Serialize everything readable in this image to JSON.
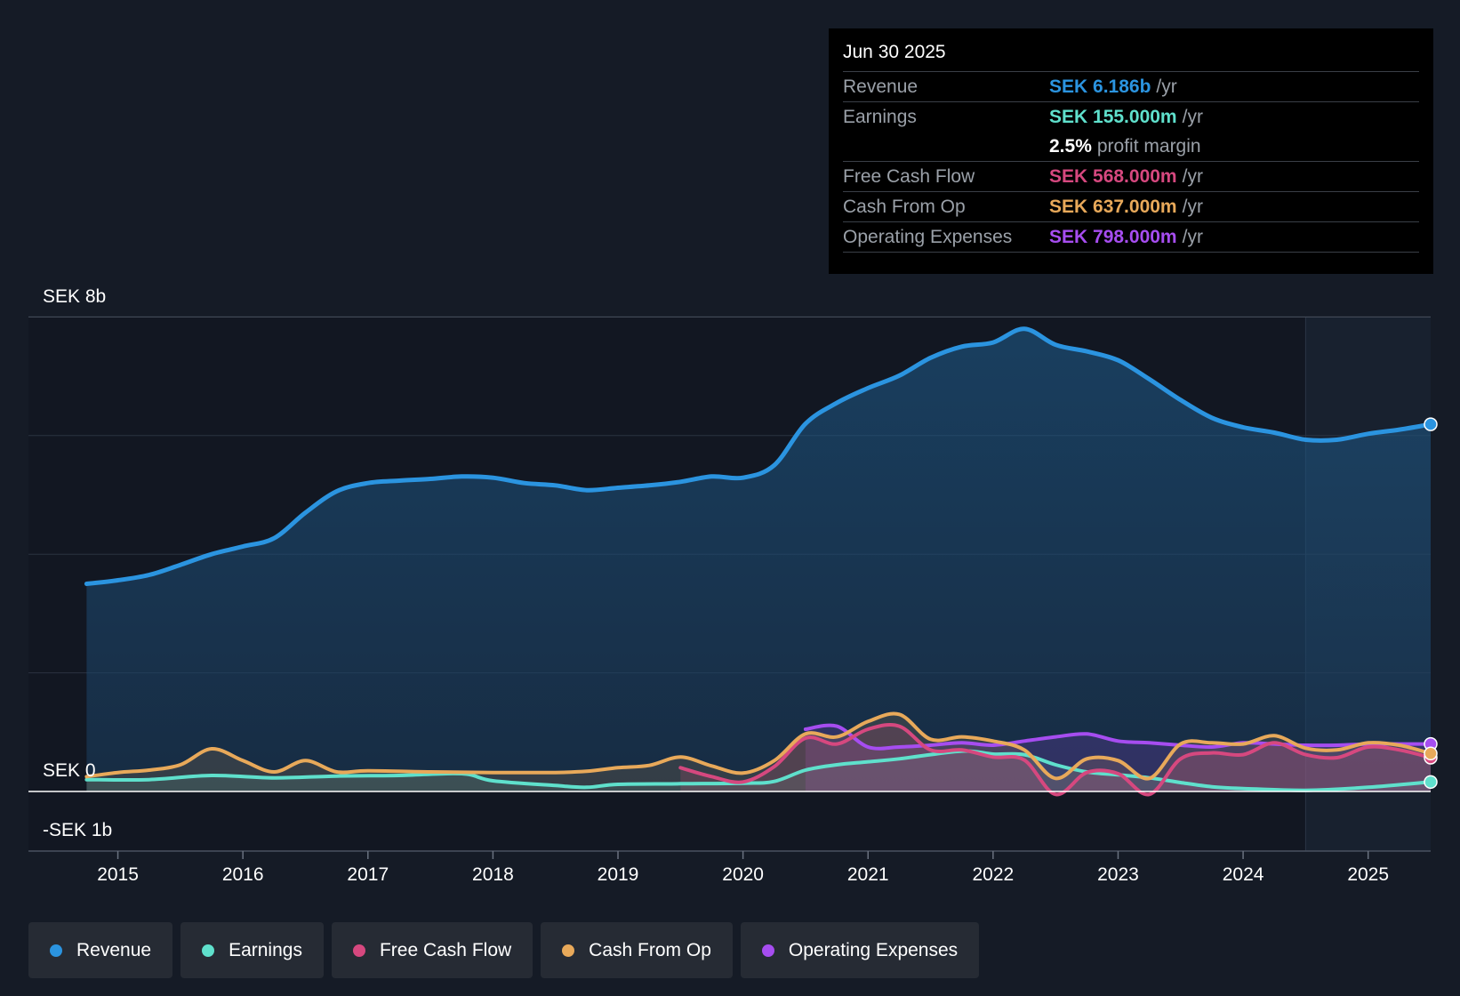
{
  "colors": {
    "revenue": "#2b94e0",
    "earnings": "#5fe0cc",
    "fcf": "#d6487f",
    "cfo": "#e8a95a",
    "opex": "#a64df0"
  },
  "tooltip": {
    "date": "Jun 30 2025",
    "rows": [
      {
        "label": "Revenue",
        "value": "SEK 6.186b",
        "unit": "/yr"
      },
      {
        "label": "Earnings",
        "value": "SEK 155.000m",
        "unit": "/yr"
      },
      {
        "label": "",
        "value": "2.5%",
        "unit": "profit margin"
      },
      {
        "label": "Free Cash Flow",
        "value": "SEK 568.000m",
        "unit": "/yr"
      },
      {
        "label": "Cash From Op",
        "value": "SEK 637.000m",
        "unit": "/yr"
      },
      {
        "label": "Operating Expenses",
        "value": "SEK 798.000m",
        "unit": "/yr"
      }
    ]
  },
  "legend": [
    {
      "label": "Revenue"
    },
    {
      "label": "Earnings"
    },
    {
      "label": "Free Cash Flow"
    },
    {
      "label": "Cash From Op"
    },
    {
      "label": "Operating Expenses"
    }
  ],
  "chart_data": {
    "type": "area",
    "title": "",
    "y_unit": "SEK b",
    "ylim": [
      -1,
      8
    ],
    "y_tick_labels": [
      {
        "value": 8,
        "label": "SEK 8b"
      },
      {
        "value": 0,
        "label": "SEK 0"
      },
      {
        "value": -1,
        "label": "-SEK 1b"
      }
    ],
    "gridlines": [
      2,
      4,
      6,
      8
    ],
    "xlim": [
      2014.74,
      2025.5
    ],
    "x_ticks": [
      2015,
      2016,
      2017,
      2018,
      2019,
      2020,
      2021,
      2022,
      2023,
      2024,
      2025
    ],
    "x_tick_labels": [
      "2015",
      "2016",
      "2017",
      "2018",
      "2019",
      "2020",
      "2021",
      "2022",
      "2023",
      "2024",
      "2025"
    ],
    "forecast_shade_from": 2024.5,
    "series": [
      {
        "name": "Revenue",
        "key": "revenue",
        "points": [
          [
            2014.75,
            3.5
          ],
          [
            2015.0,
            3.56
          ],
          [
            2015.25,
            3.65
          ],
          [
            2015.5,
            3.82
          ],
          [
            2015.75,
            4.0
          ],
          [
            2016.0,
            4.13
          ],
          [
            2016.25,
            4.27
          ],
          [
            2016.5,
            4.7
          ],
          [
            2016.75,
            5.06
          ],
          [
            2017.0,
            5.2
          ],
          [
            2017.25,
            5.24
          ],
          [
            2017.5,
            5.27
          ],
          [
            2017.75,
            5.31
          ],
          [
            2018.0,
            5.29
          ],
          [
            2018.25,
            5.2
          ],
          [
            2018.5,
            5.16
          ],
          [
            2018.75,
            5.08
          ],
          [
            2019.0,
            5.12
          ],
          [
            2019.25,
            5.16
          ],
          [
            2019.5,
            5.22
          ],
          [
            2019.75,
            5.31
          ],
          [
            2020.0,
            5.29
          ],
          [
            2020.25,
            5.5
          ],
          [
            2020.5,
            6.2
          ],
          [
            2020.75,
            6.55
          ],
          [
            2021.0,
            6.8
          ],
          [
            2021.25,
            7.01
          ],
          [
            2021.5,
            7.31
          ],
          [
            2021.75,
            7.5
          ],
          [
            2022.0,
            7.57
          ],
          [
            2022.25,
            7.8
          ],
          [
            2022.5,
            7.53
          ],
          [
            2022.75,
            7.42
          ],
          [
            2023.0,
            7.27
          ],
          [
            2023.25,
            6.95
          ],
          [
            2023.5,
            6.6
          ],
          [
            2023.75,
            6.3
          ],
          [
            2024.0,
            6.14
          ],
          [
            2024.25,
            6.05
          ],
          [
            2024.5,
            5.93
          ],
          [
            2024.75,
            5.93
          ],
          [
            2025.0,
            6.03
          ],
          [
            2025.25,
            6.1
          ],
          [
            2025.5,
            6.19
          ]
        ]
      },
      {
        "name": "Earnings",
        "key": "earnings",
        "points": [
          [
            2014.75,
            0.2
          ],
          [
            2015.25,
            0.2
          ],
          [
            2015.75,
            0.27
          ],
          [
            2016.25,
            0.23
          ],
          [
            2016.75,
            0.26
          ],
          [
            2017.25,
            0.27
          ],
          [
            2017.75,
            0.3
          ],
          [
            2018.0,
            0.18
          ],
          [
            2018.5,
            0.1
          ],
          [
            2018.75,
            0.07
          ],
          [
            2019.0,
            0.12
          ],
          [
            2019.5,
            0.13
          ],
          [
            2020.0,
            0.14
          ],
          [
            2020.25,
            0.17
          ],
          [
            2020.5,
            0.36
          ],
          [
            2020.75,
            0.45
          ],
          [
            2021.0,
            0.5
          ],
          [
            2021.25,
            0.55
          ],
          [
            2021.75,
            0.68
          ],
          [
            2022.0,
            0.63
          ],
          [
            2022.25,
            0.62
          ],
          [
            2022.5,
            0.45
          ],
          [
            2022.75,
            0.33
          ],
          [
            2023.0,
            0.28
          ],
          [
            2023.25,
            0.23
          ],
          [
            2023.5,
            0.15
          ],
          [
            2023.75,
            0.08
          ],
          [
            2024.0,
            0.05
          ],
          [
            2024.5,
            0.02
          ],
          [
            2025.0,
            0.07
          ],
          [
            2025.5,
            0.16
          ]
        ]
      },
      {
        "name": "Free Cash Flow",
        "key": "fcf",
        "points": [
          [
            2019.5,
            0.4
          ],
          [
            2019.75,
            0.25
          ],
          [
            2020.0,
            0.16
          ],
          [
            2020.25,
            0.42
          ],
          [
            2020.5,
            0.9
          ],
          [
            2020.75,
            0.8
          ],
          [
            2021.0,
            1.05
          ],
          [
            2021.25,
            1.1
          ],
          [
            2021.5,
            0.7
          ],
          [
            2021.75,
            0.7
          ],
          [
            2022.0,
            0.58
          ],
          [
            2022.25,
            0.53
          ],
          [
            2022.5,
            -0.05
          ],
          [
            2022.75,
            0.32
          ],
          [
            2023.0,
            0.3
          ],
          [
            2023.25,
            -0.05
          ],
          [
            2023.5,
            0.55
          ],
          [
            2023.75,
            0.65
          ],
          [
            2024.0,
            0.62
          ],
          [
            2024.25,
            0.82
          ],
          [
            2024.5,
            0.62
          ],
          [
            2024.75,
            0.57
          ],
          [
            2025.0,
            0.75
          ],
          [
            2025.25,
            0.7
          ],
          [
            2025.5,
            0.57
          ]
        ]
      },
      {
        "name": "Cash From Op",
        "key": "cfo",
        "points": [
          [
            2014.75,
            0.25
          ],
          [
            2015.0,
            0.32
          ],
          [
            2015.25,
            0.36
          ],
          [
            2015.5,
            0.45
          ],
          [
            2015.75,
            0.72
          ],
          [
            2016.0,
            0.52
          ],
          [
            2016.25,
            0.33
          ],
          [
            2016.5,
            0.52
          ],
          [
            2016.75,
            0.33
          ],
          [
            2017.0,
            0.35
          ],
          [
            2017.5,
            0.33
          ],
          [
            2018.0,
            0.32
          ],
          [
            2018.5,
            0.32
          ],
          [
            2018.75,
            0.34
          ],
          [
            2019.0,
            0.4
          ],
          [
            2019.25,
            0.44
          ],
          [
            2019.5,
            0.58
          ],
          [
            2019.75,
            0.43
          ],
          [
            2020.0,
            0.31
          ],
          [
            2020.25,
            0.52
          ],
          [
            2020.5,
            0.97
          ],
          [
            2020.75,
            0.92
          ],
          [
            2021.0,
            1.18
          ],
          [
            2021.25,
            1.3
          ],
          [
            2021.5,
            0.88
          ],
          [
            2021.75,
            0.92
          ],
          [
            2022.0,
            0.85
          ],
          [
            2022.25,
            0.7
          ],
          [
            2022.5,
            0.22
          ],
          [
            2022.75,
            0.55
          ],
          [
            2023.0,
            0.52
          ],
          [
            2023.25,
            0.22
          ],
          [
            2023.5,
            0.8
          ],
          [
            2023.75,
            0.82
          ],
          [
            2024.0,
            0.8
          ],
          [
            2024.25,
            0.94
          ],
          [
            2024.5,
            0.73
          ],
          [
            2024.75,
            0.7
          ],
          [
            2025.0,
            0.82
          ],
          [
            2025.25,
            0.78
          ],
          [
            2025.5,
            0.64
          ]
        ]
      },
      {
        "name": "Operating Expenses",
        "key": "opex",
        "points": [
          [
            2020.5,
            1.05
          ],
          [
            2020.75,
            1.1
          ],
          [
            2021.0,
            0.75
          ],
          [
            2021.25,
            0.75
          ],
          [
            2021.5,
            0.78
          ],
          [
            2021.75,
            0.82
          ],
          [
            2022.0,
            0.78
          ],
          [
            2022.25,
            0.85
          ],
          [
            2022.5,
            0.92
          ],
          [
            2022.75,
            0.97
          ],
          [
            2023.0,
            0.85
          ],
          [
            2023.25,
            0.82
          ],
          [
            2023.5,
            0.78
          ],
          [
            2023.75,
            0.75
          ],
          [
            2024.0,
            0.82
          ],
          [
            2024.25,
            0.8
          ],
          [
            2024.5,
            0.78
          ],
          [
            2024.75,
            0.78
          ],
          [
            2025.0,
            0.8
          ],
          [
            2025.25,
            0.8
          ],
          [
            2025.5,
            0.8
          ]
        ]
      }
    ]
  }
}
